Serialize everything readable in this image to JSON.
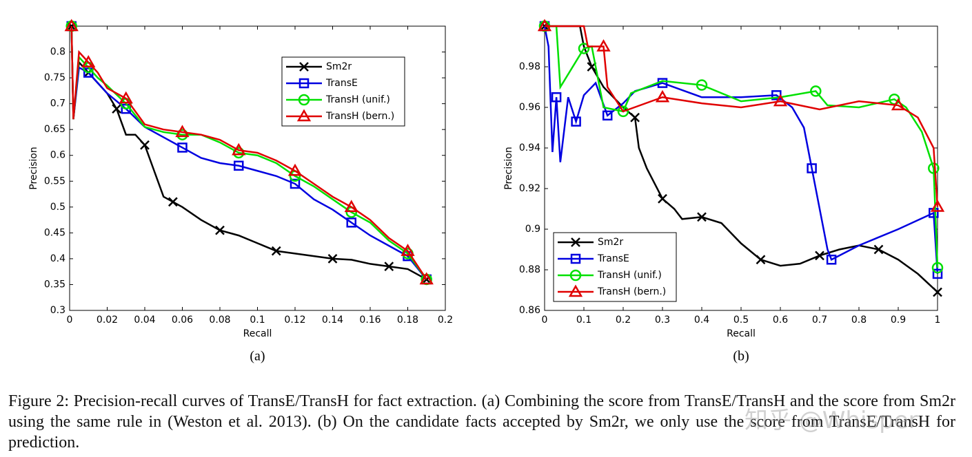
{
  "chart_data": [
    {
      "type": "line",
      "sublabel": "(a)",
      "xlabel": "Recall",
      "ylabel": "Precision",
      "xlim": [
        0,
        0.2
      ],
      "ylim": [
        0.3,
        0.85
      ],
      "xticks": [
        0,
        0.02,
        0.04,
        0.06,
        0.08,
        0.1,
        0.12,
        0.14,
        0.16,
        0.18,
        0.2
      ],
      "yticks": [
        0.3,
        0.35,
        0.4,
        0.45,
        0.5,
        0.55,
        0.6,
        0.65,
        0.7,
        0.75,
        0.8
      ],
      "legend": "upper right",
      "series": [
        {
          "name": "Sm2r",
          "color": "#000000",
          "marker": "x",
          "x": [
            0.001,
            0.002,
            0.005,
            0.01,
            0.015,
            0.02,
            0.025,
            0.03,
            0.035,
            0.04,
            0.045,
            0.05,
            0.055,
            0.06,
            0.07,
            0.08,
            0.09,
            0.1,
            0.11,
            0.12,
            0.13,
            0.14,
            0.15,
            0.16,
            0.17,
            0.18,
            0.19
          ],
          "values": [
            0.85,
            0.67,
            0.78,
            0.76,
            0.74,
            0.72,
            0.69,
            0.64,
            0.64,
            0.62,
            0.57,
            0.52,
            0.51,
            0.5,
            0.475,
            0.455,
            0.445,
            0.43,
            0.415,
            0.41,
            0.405,
            0.4,
            0.398,
            0.39,
            0.385,
            0.38,
            0.36
          ]
        },
        {
          "name": "TransE",
          "color": "#0000e0",
          "marker": "s",
          "x": [
            0.001,
            0.002,
            0.005,
            0.01,
            0.015,
            0.02,
            0.03,
            0.04,
            0.05,
            0.06,
            0.07,
            0.08,
            0.09,
            0.1,
            0.11,
            0.12,
            0.13,
            0.14,
            0.15,
            0.16,
            0.17,
            0.18,
            0.19
          ],
          "values": [
            0.85,
            0.67,
            0.77,
            0.76,
            0.74,
            0.72,
            0.69,
            0.655,
            0.635,
            0.615,
            0.595,
            0.585,
            0.58,
            0.57,
            0.56,
            0.545,
            0.515,
            0.495,
            0.47,
            0.445,
            0.425,
            0.405,
            0.36
          ]
        },
        {
          "name": "TransH (unif.)",
          "color": "#00e000",
          "marker": "o",
          "x": [
            0.001,
            0.002,
            0.005,
            0.01,
            0.015,
            0.02,
            0.03,
            0.04,
            0.05,
            0.06,
            0.07,
            0.08,
            0.09,
            0.1,
            0.11,
            0.12,
            0.13,
            0.14,
            0.15,
            0.16,
            0.17,
            0.18,
            0.19
          ],
          "values": [
            0.85,
            0.67,
            0.79,
            0.77,
            0.75,
            0.735,
            0.7,
            0.655,
            0.645,
            0.64,
            0.64,
            0.625,
            0.605,
            0.6,
            0.585,
            0.56,
            0.54,
            0.515,
            0.49,
            0.47,
            0.435,
            0.41,
            0.36
          ]
        },
        {
          "name": "TransH (bern.)",
          "color": "#e00000",
          "marker": "^",
          "x": [
            0.001,
            0.002,
            0.005,
            0.01,
            0.015,
            0.02,
            0.03,
            0.04,
            0.05,
            0.06,
            0.07,
            0.08,
            0.09,
            0.1,
            0.11,
            0.12,
            0.13,
            0.14,
            0.15,
            0.16,
            0.17,
            0.18,
            0.19
          ],
          "values": [
            0.85,
            0.67,
            0.8,
            0.78,
            0.76,
            0.73,
            0.71,
            0.66,
            0.65,
            0.645,
            0.64,
            0.63,
            0.61,
            0.605,
            0.59,
            0.57,
            0.545,
            0.52,
            0.5,
            0.475,
            0.44,
            0.415,
            0.36
          ]
        }
      ]
    },
    {
      "type": "line",
      "sublabel": "(b)",
      "xlabel": "Recall",
      "ylabel": "Precision",
      "xlim": [
        0,
        1
      ],
      "ylim": [
        0.86,
        1.0
      ],
      "xticks": [
        0,
        0.1,
        0.2,
        0.3,
        0.4,
        0.5,
        0.6,
        0.7,
        0.8,
        0.9,
        1
      ],
      "yticks": [
        0.86,
        0.88,
        0.9,
        0.92,
        0.94,
        0.96,
        0.98
      ],
      "legend": "lower left",
      "series": [
        {
          "name": "Sm2r",
          "color": "#000000",
          "marker": "x",
          "x": [
            0,
            0.09,
            0.1,
            0.12,
            0.15,
            0.2,
            0.23,
            0.24,
            0.26,
            0.3,
            0.33,
            0.35,
            0.4,
            0.45,
            0.5,
            0.55,
            0.6,
            0.65,
            0.7,
            0.75,
            0.8,
            0.85,
            0.9,
            0.95,
            1
          ],
          "values": [
            1.0,
            1.0,
            0.99,
            0.98,
            0.97,
            0.96,
            0.955,
            0.94,
            0.93,
            0.915,
            0.91,
            0.905,
            0.906,
            0.903,
            0.893,
            0.885,
            0.882,
            0.883,
            0.887,
            0.89,
            0.892,
            0.89,
            0.885,
            0.878,
            0.869
          ]
        },
        {
          "name": "TransE",
          "color": "#0000e0",
          "marker": "s",
          "x": [
            0,
            0.01,
            0.02,
            0.03,
            0.04,
            0.06,
            0.08,
            0.1,
            0.13,
            0.16,
            0.2,
            0.23,
            0.3,
            0.4,
            0.5,
            0.59,
            0.63,
            0.66,
            0.68,
            0.7,
            0.72,
            0.73,
            0.8,
            0.9,
            0.99,
            1
          ],
          "values": [
            1.0,
            0.99,
            0.938,
            0.965,
            0.933,
            0.965,
            0.953,
            0.966,
            0.972,
            0.956,
            0.962,
            0.968,
            0.972,
            0.965,
            0.965,
            0.966,
            0.96,
            0.95,
            0.93,
            0.91,
            0.89,
            0.885,
            0.892,
            0.9,
            0.908,
            0.878
          ]
        },
        {
          "name": "TransH (unif.)",
          "color": "#00e000",
          "marker": "o",
          "x": [
            0,
            0.03,
            0.04,
            0.1,
            0.12,
            0.15,
            0.2,
            0.22,
            0.3,
            0.4,
            0.5,
            0.6,
            0.69,
            0.72,
            0.8,
            0.89,
            0.92,
            0.96,
            0.99,
            1
          ],
          "values": [
            1.0,
            1.0,
            0.97,
            0.989,
            0.99,
            0.96,
            0.958,
            0.967,
            0.973,
            0.971,
            0.963,
            0.965,
            0.968,
            0.961,
            0.96,
            0.964,
            0.96,
            0.948,
            0.93,
            0.881
          ]
        },
        {
          "name": "TransH (bern.)",
          "color": "#e00000",
          "marker": "^",
          "x": [
            0,
            0.1,
            0.11,
            0.15,
            0.16,
            0.2,
            0.3,
            0.4,
            0.5,
            0.6,
            0.7,
            0.8,
            0.9,
            0.95,
            0.99,
            1
          ],
          "values": [
            1.0,
            1.0,
            0.99,
            0.99,
            0.97,
            0.958,
            0.965,
            0.962,
            0.96,
            0.963,
            0.959,
            0.963,
            0.961,
            0.955,
            0.94,
            0.911
          ]
        }
      ]
    }
  ],
  "caption": "Figure 2: Precision-recall curves of TransE/TransH for fact extraction. (a) Combining the score from TransE/TransH and the score from Sm2r using the same rule in (Weston et al. 2013). (b) On the candidate facts accepted by Sm2r, we only use the score from TransE/TransH for prediction.",
  "watermark": "知乎 @Whisper"
}
